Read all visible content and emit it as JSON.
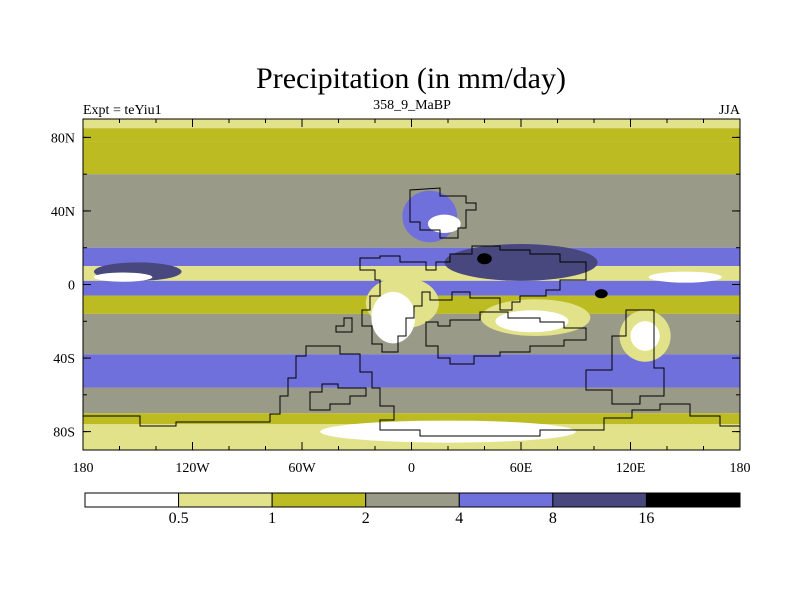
{
  "chart_data": {
    "type": "heatmap",
    "title": "Precipitation (in mm/day)",
    "left_label": "Expt = teYiu1",
    "center_label": "358_9_MaBP",
    "right_label": "JJA",
    "x_ticks": [
      {
        "value": -180,
        "label": "180"
      },
      {
        "value": -120,
        "label": "120W"
      },
      {
        "value": -60,
        "label": "60W"
      },
      {
        "value": 0,
        "label": "0"
      },
      {
        "value": 60,
        "label": "60E"
      },
      {
        "value": 120,
        "label": "120E"
      },
      {
        "value": 180,
        "label": "180"
      }
    ],
    "y_ticks": [
      {
        "value": 80,
        "label": "80N"
      },
      {
        "value": 40,
        "label": "40N"
      },
      {
        "value": 0,
        "label": "0"
      },
      {
        "value": -40,
        "label": "40S"
      },
      {
        "value": -80,
        "label": "80S"
      }
    ],
    "xlim": [
      -180,
      180
    ],
    "ylim": [
      -90,
      90
    ],
    "levels": [
      "0.5",
      "1",
      "2",
      "4",
      "8",
      "16"
    ],
    "colors": [
      "#ffffff",
      "#e2e28a",
      "#bcbc22",
      "#9a9a88",
      "#7070dd",
      "#48487e",
      "#000000"
    ],
    "bands": [
      {
        "lat": [
          90,
          85
        ],
        "level": 1
      },
      {
        "lat": [
          85,
          78
        ],
        "level": 2
      },
      {
        "lat": [
          78,
          60
        ],
        "level": 2
      },
      {
        "lat": [
          60,
          20
        ],
        "level": 3
      },
      {
        "lat": [
          20,
          10
        ],
        "level": 4
      },
      {
        "lat": [
          10,
          2
        ],
        "level": 1
      },
      {
        "lat": [
          2,
          -6
        ],
        "level": 4
      },
      {
        "lat": [
          -6,
          -16
        ],
        "level": 2
      },
      {
        "lat": [
          -16,
          -38
        ],
        "level": 3
      },
      {
        "lat": [
          -38,
          -56
        ],
        "level": 4
      },
      {
        "lat": [
          -56,
          -70
        ],
        "level": 3
      },
      {
        "lat": [
          -70,
          -76
        ],
        "level": 2
      },
      {
        "lat": [
          -76,
          -90
        ],
        "level": 1
      }
    ],
    "blobs": [
      {
        "lon": -150,
        "lat": 7,
        "rlon": 24,
        "rlat": 5,
        "level": 5
      },
      {
        "lon": -158,
        "lat": 4,
        "rlon": 16,
        "rlat": 2.5,
        "level": 0
      },
      {
        "lon": 150,
        "lat": 4,
        "rlon": 20,
        "rlat": 3,
        "level": 0
      },
      {
        "lon": 60,
        "lat": 12,
        "rlon": 42,
        "rlat": 10,
        "level": 5
      },
      {
        "lon": 10,
        "lat": 37,
        "rlon": 15,
        "rlat": 14,
        "level": 4
      },
      {
        "lon": 18,
        "lat": 33,
        "rlon": 9,
        "rlat": 5,
        "level": 0
      },
      {
        "lon": -5,
        "lat": -10,
        "rlon": 20,
        "rlat": 14,
        "level": 1
      },
      {
        "lon": -10,
        "lat": -18,
        "rlon": 12,
        "rlat": 14,
        "level": 0
      },
      {
        "lon": 68,
        "lat": -18,
        "rlon": 30,
        "rlat": 10,
        "level": 1
      },
      {
        "lon": 66,
        "lat": -20,
        "rlon": 20,
        "rlat": 6,
        "level": 0
      },
      {
        "lon": 128,
        "lat": -28,
        "rlon": 14,
        "rlat": 14,
        "level": 1
      },
      {
        "lon": 128,
        "lat": -28,
        "rlon": 8,
        "rlat": 8,
        "level": 0
      },
      {
        "lon": 20,
        "lat": -80,
        "rlon": 70,
        "rlat": 6,
        "level": 0
      },
      {
        "lon": 40,
        "lat": 14,
        "rlon": 4,
        "rlat": 3,
        "level": 6
      },
      {
        "lon": 104,
        "lat": -5,
        "rlon": 3.5,
        "rlat": 2.5,
        "level": 6
      }
    ]
  }
}
